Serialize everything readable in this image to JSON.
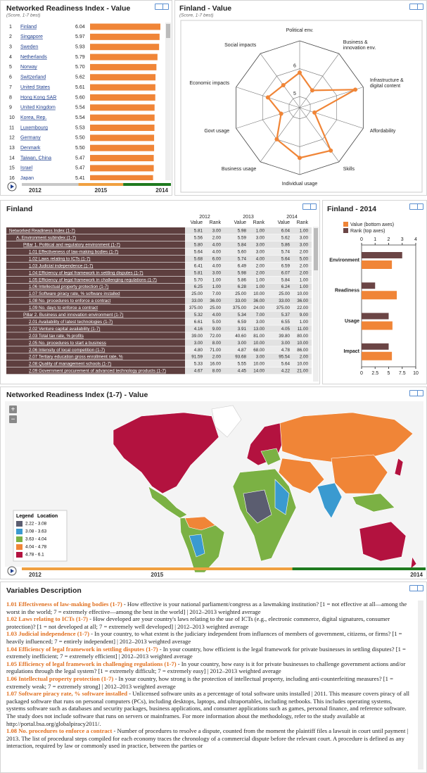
{
  "chart_data": [
    {
      "type": "bar",
      "orientation": "horizontal",
      "title": "Networked Readiness Index - Value",
      "subtitle": "(Score, 1-7 best)",
      "ranks": [
        1,
        2,
        3,
        4,
        5,
        6,
        7,
        8,
        9,
        10,
        11,
        12,
        13,
        14,
        15,
        16
      ],
      "categories": [
        "Finland",
        "Singapore",
        "Sweden",
        "Netherlands",
        "Norway",
        "Switzerland",
        "United States",
        "Hong Kong SAR",
        "United Kingdom",
        "Korea, Rep.",
        "Luxembourg",
        "Germany",
        "Denmark",
        "Taiwan, China",
        "Israel",
        "Japan"
      ],
      "values": [
        6.04,
        5.97,
        5.93,
        5.79,
        5.7,
        5.62,
        5.61,
        5.6,
        5.54,
        5.54,
        5.53,
        5.5,
        5.5,
        5.47,
        5.47,
        5.41
      ],
      "value_labels": [
        "6.04",
        "5.97",
        "5.93",
        "5.79",
        "5.70",
        "5.62",
        "5.61",
        "5.60",
        "5.54",
        "5.54",
        "5.53",
        "5.50",
        "5.50",
        "5.47",
        "5.47",
        "5.41"
      ],
      "color": "#f08537",
      "timeline": [
        "2012",
        "2015",
        "2014"
      ]
    },
    {
      "type": "radar",
      "title": "Finland - Value",
      "subtitle": "(Score, 1-7 best)",
      "categories": [
        "Political env.",
        "Business & innovation env.",
        "Infrastructure & digital content",
        "Affordability",
        "Skills",
        "Individual usage",
        "Business usage",
        "Govt usage",
        "Economic impacts",
        "Social impacts"
      ],
      "values": [
        5.86,
        5.37,
        6.7,
        5.16,
        6.5,
        6.4,
        6.0,
        5.3,
        5.8,
        5.6
      ],
      "color": "#f08537",
      "rlim": [
        4.6,
        7
      ],
      "rticks": [
        5,
        6
      ]
    },
    {
      "type": "grouped-bar",
      "orientation": "horizontal",
      "title": "Finland - 2014",
      "categories": [
        "Environment",
        "Readiness",
        "Usage",
        "Impact"
      ],
      "series": [
        {
          "name": "Value (bottom axes)",
          "color": "#f08537",
          "values": [
            5.6,
            6.5,
            5.7,
            5.6
          ],
          "axis": "x"
        },
        {
          "name": "Rank (top axes)",
          "color": "#6b4545",
          "values": [
            3,
            1,
            2,
            2
          ],
          "axis": "x2"
        }
      ],
      "xlim": [
        0,
        10
      ],
      "xticks": [
        0,
        2.5,
        5,
        7.5,
        10
      ],
      "x2lim": [
        0,
        4
      ],
      "x2ticks": [
        0,
        1,
        2,
        3,
        4
      ]
    }
  ],
  "table": {
    "title": "Finland",
    "years": [
      "2012",
      "2013",
      "2014"
    ],
    "columns": [
      "Value",
      "Rank"
    ],
    "rows": [
      [
        "Networked Readiness Index (1-7)",
        "5.81",
        "3.00",
        "5.98",
        "1.00",
        "6.04",
        "1.00"
      ],
      [
        "A. Environment subindex (1-7)",
        "5.56",
        "2.00",
        "5.59",
        "3.00",
        "5.62",
        "3.00"
      ],
      [
        "Pillar 1. Political and regulatory environment (1-7)",
        "5.80",
        "4.00",
        "5.84",
        "3.00",
        "5.86",
        "3.00"
      ],
      [
        "1.01 Effectiveness of law-making bodies (1-7)",
        "5.64",
        "4.00",
        "5.60",
        "3.00",
        "5.74",
        "2.00"
      ],
      [
        "1.02 Laws relating to ICTs (1-7)",
        "5.68",
        "6.00",
        "5.74",
        "4.00",
        "5.64",
        "5.00"
      ],
      [
        "1.03 Judicial independence (1-7)",
        "6.41",
        "4.00",
        "6.49",
        "2.00",
        "6.59",
        "2.00"
      ],
      [
        "1.04 Efficiency of legal framework in settling disputes (1-7)",
        "5.81",
        "3.00",
        "5.98",
        "2.00",
        "6.07",
        "2.00"
      ],
      [
        "1.05 Efficiency of legal framework in challenging regulations (1-7)",
        "5.70",
        "1.00",
        "5.86",
        "1.00",
        "5.84",
        "1.00"
      ],
      [
        "1.06 Intellectual property protection (1-7)",
        "6.25",
        "1.00",
        "6.28",
        "1.00",
        "6.24",
        "1.00"
      ],
      [
        "1.07 Software piracy rate, % software installed",
        "25.00",
        "7.00",
        "25.00",
        "10.00",
        "25.00",
        "10.00"
      ],
      [
        "1.08 No. procedures to enforce a contract",
        "33.00",
        "36.00",
        "33.00",
        "36.00",
        "33.00",
        "36.00"
      ],
      [
        "1.09 No. days to enforce a contract",
        "375.00",
        "25.00",
        "375.00",
        "24.00",
        "375.00",
        "22.00"
      ],
      [
        "Pillar 2. Business and innovation environment (1-7)",
        "5.32",
        "4.00",
        "5.34",
        "7.00",
        "5.37",
        "9.00"
      ],
      [
        "2.01 Availability of latest technologies (1-7)",
        "6.61",
        "5.00",
        "6.59",
        "3.00",
        "6.55",
        "1.00"
      ],
      [
        "2.02 Venture capital availability (1-7)",
        "4.16",
        "9.00",
        "3.91",
        "13.00",
        "4.05",
        "11.00"
      ],
      [
        "2.03 Total tax rate, % profits",
        "39.00",
        "72.00",
        "40.60",
        "81.00",
        "39.80",
        "80.00"
      ],
      [
        "2.05 No. procedures to start a business",
        "3.00",
        "8.00",
        "3.00",
        "10.00",
        "3.00",
        "10.00"
      ],
      [
        "2.06 Intensity of local competition (1-7)",
        "4.80",
        "71.00",
        "4.87",
        "68.00",
        "4.78",
        "86.00"
      ],
      [
        "2.07 Tertiary education gross enrollment rate, %",
        "91.59",
        "2.00",
        "93.68",
        "3.00",
        "95.54",
        "2.00"
      ],
      [
        "2.08 Quality of management schools (1-7)",
        "5.33",
        "16.00",
        "5.55",
        "10.00",
        "5.64",
        "10.00"
      ],
      [
        "2.09 Government procurement of advanced technology products (1-7)",
        "4.67",
        "8.00",
        "4.45",
        "14.00",
        "4.22",
        "21.00"
      ]
    ]
  },
  "map": {
    "title": "Networked Readiness Index (1-7) - Value",
    "zoom": [
      "+",
      "−"
    ],
    "legend_title": "Legend",
    "legend_subtitle": "Location",
    "legend": [
      {
        "label": "2.22 - 3.08",
        "color": "#5b5d70"
      },
      {
        "label": "3.08 - 3.63",
        "color": "#3a9ad0"
      },
      {
        "label": "3.63 - 4.04",
        "color": "#7bb144"
      },
      {
        "label": "4.04 - 4.78",
        "color": "#f08537"
      },
      {
        "label": "4.78 - 6.1",
        "color": "#b3123f"
      }
    ],
    "timeline": [
      "2012",
      "2015",
      "2014"
    ]
  },
  "variables": {
    "title": "Variables Description",
    "items": [
      {
        "heading": "1.01 Effectiveness of law-making bodies (1-7)",
        "text": " - How effective is your national parliament/congress as a lawmaking institution? [1 = not effective at all—among the worst in the world; 7 = extremely effective—among the best in the world] | 2012–2013 weighted average"
      },
      {
        "heading": "1.02 Laws relating to ICTs (1-7)",
        "text": " - How developed are your country's laws relating to the use of ICTs (e.g., electronic commerce, digital signatures, consumer protection)? [1 = not developed at all; 7 = extremely well developed] | 2012–2013 weighted average"
      },
      {
        "heading": "1.03 Judicial independence (1-7)",
        "text": " - In your country, to what extent is the judiciary independent from influences of members of government, citizens, or firms? [1 = heavily influenced; 7 = entirely independent] | 2012–2013 weighted average"
      },
      {
        "heading": "1.04 Efficiency of legal framework in settling disputes (1-7)",
        "text": " - In your country, how efficient is the legal framework for private businesses in settling disputes? [1 = extremely inefficient; 7 = extremely efficient] | 2012–2013 weighted average"
      },
      {
        "heading": "1.05 Efficiency of legal framework in challenging regulations (1-7)",
        "text": " - In your country, how easy is it for private businesses to challenge government actions and/or regulations through the legal system? [1 = extremely difficult; 7 = extremely easy] | 2012–2013 weighted average"
      },
      {
        "heading": "1.06 Intellectual property protection (1-7)",
        "text": " - In your country, how strong is the protection of intellectual property, including anti-counterfeiting measures? [1 = extremely weak; 7 = extremely strong] | 2012–2013 weighted average"
      },
      {
        "heading": "1.07 Software piracy rate, % software installed",
        "text": " - Unlicensed software units as a percentage of total software units installed | 2011. This measure covers piracy of all packaged software that runs on personal computers (PCs), including desktops, laptops, and ultraportables, including netbooks. This includes operating systems, systems software such as databases and security packages, business applications, and consumer applications such as games, personal finance, and reference software. The study does not include software that runs on servers or mainframes. For more information about the methodology, refer to the study available at http://portal.bsa.org/globalpiracy2011/."
      },
      {
        "heading": "1.08 No. procedures to enforce a contract",
        "text": " - Number of procedures to resolve a dispute, counted from the moment the plaintiff files a lawsuit in court until payment | 2013. The list of procedural steps compiled for each economy traces the chronology of a commercial dispute before the relevant court. A procedure is defined as any interaction, required by law or commonly used in practice, between the parties or"
      }
    ]
  }
}
